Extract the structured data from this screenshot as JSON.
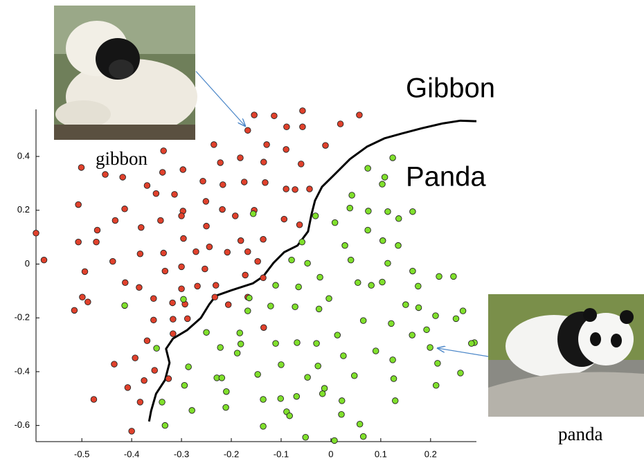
{
  "chart_data": {
    "type": "scatter",
    "xlim": [
      -0.592,
      0.292
    ],
    "ylim": [
      -0.66,
      0.575
    ],
    "xticks": [
      -0.5,
      -0.4,
      -0.3,
      -0.2,
      -0.1,
      0,
      0.1,
      0.2
    ],
    "yticks": [
      -0.6,
      -0.4,
      -0.2,
      0,
      0.2,
      0.4
    ],
    "annotations": [
      "Gibbon",
      "Panda",
      "gibbon",
      "panda"
    ],
    "series": [
      {
        "color": "#e0412c",
        "x": [
          -0.592,
          -0.057,
          0.057,
          -0.154,
          -0.114,
          -0.167,
          -0.089,
          -0.057,
          0.019,
          -0.011,
          -0.235,
          -0.336,
          -0.338,
          -0.129,
          -0.09,
          -0.222,
          -0.182,
          -0.135,
          -0.06,
          -0.297,
          -0.257,
          -0.217,
          -0.174,
          -0.132,
          -0.09,
          -0.072,
          -0.043,
          -0.501,
          -0.453,
          -0.418,
          -0.369,
          -0.314,
          -0.251,
          -0.218,
          -0.507,
          -0.414,
          -0.351,
          -0.297,
          -0.154,
          -0.433,
          -0.381,
          -0.342,
          -0.3,
          -0.192,
          -0.094,
          -0.063,
          -0.469,
          -0.25,
          -0.181,
          -0.136,
          -0.507,
          -0.471,
          -0.296,
          -0.271,
          -0.244,
          -0.208,
          -0.167,
          -0.576,
          -0.438,
          -0.383,
          -0.336,
          -0.3,
          -0.253,
          -0.147,
          -0.494,
          -0.333,
          -0.413,
          -0.385,
          -0.3,
          -0.268,
          -0.231,
          -0.172,
          -0.136,
          -0.499,
          -0.488,
          -0.515,
          -0.356,
          -0.318,
          -0.293,
          -0.233,
          -0.167,
          -0.206,
          -0.317,
          -0.288,
          -0.356,
          -0.135,
          -0.317,
          -0.369,
          -0.393,
          -0.435,
          -0.354,
          -0.326,
          -0.375,
          -0.408,
          -0.476,
          -0.383,
          -0.4
        ],
        "values": [
          0.115,
          0.57,
          0.554,
          0.554,
          0.551,
          0.497,
          0.51,
          0.51,
          0.521,
          0.441,
          0.444,
          0.421,
          0.341,
          0.444,
          0.426,
          0.377,
          0.395,
          0.379,
          0.372,
          0.351,
          0.308,
          0.295,
          0.305,
          0.303,
          0.279,
          0.277,
          0.279,
          0.359,
          0.333,
          0.323,
          0.292,
          0.259,
          0.233,
          0.203,
          0.221,
          0.205,
          0.262,
          0.197,
          0.2,
          0.162,
          0.136,
          0.162,
          0.179,
          0.179,
          0.167,
          0.146,
          0.126,
          0.141,
          0.087,
          0.092,
          0.082,
          0.082,
          0.095,
          0.046,
          0.064,
          0.044,
          0.046,
          0.015,
          0.01,
          0.038,
          0.041,
          -0.01,
          -0.018,
          0.01,
          -0.028,
          -0.026,
          -0.069,
          -0.087,
          -0.092,
          -0.082,
          -0.079,
          -0.041,
          -0.051,
          -0.123,
          -0.141,
          -0.172,
          -0.128,
          -0.144,
          -0.149,
          -0.123,
          -0.123,
          -0.151,
          -0.205,
          -0.203,
          -0.208,
          -0.236,
          -0.259,
          -0.285,
          -0.349,
          -0.372,
          -0.395,
          -0.426,
          -0.433,
          -0.459,
          -0.503,
          -0.513,
          -0.621
        ]
      },
      {
        "color": "#80e02c",
        "x": [
          0.124,
          0.074,
          0.108,
          0.103,
          0.042,
          0.038,
          0.075,
          0.114,
          0.136,
          0.164,
          -0.031,
          0.008,
          -0.156,
          0.074,
          0.104,
          -0.058,
          0.028,
          0.135,
          -0.079,
          -0.047,
          0.04,
          0.114,
          0.164,
          0.217,
          0.246,
          0.054,
          0.081,
          0.103,
          0.175,
          -0.111,
          -0.065,
          -0.164,
          -0.022,
          -0.121,
          -0.072,
          -0.004,
          0.176,
          0.15,
          0.21,
          0.265,
          0.251,
          -0.414,
          -0.296,
          -0.167,
          -0.024,
          0.121,
          0.065,
          -0.25,
          -0.183,
          0.013,
          0.192,
          -0.35,
          -0.222,
          -0.181,
          -0.111,
          -0.068,
          -0.029,
          0.09,
          0.163,
          0.288,
          0.282,
          0.199,
          -0.188,
          -0.1,
          -0.026,
          0.025,
          0.124,
          0.214,
          -0.286,
          -0.229,
          -0.219,
          -0.147,
          -0.294,
          -0.047,
          0.047,
          0.126,
          0.26,
          -0.21,
          -0.136,
          -0.101,
          -0.069,
          -0.013,
          -0.017,
          0.022,
          0.211,
          0.129,
          -0.339,
          -0.279,
          -0.211,
          -0.089,
          -0.083,
          0.021,
          -0.333,
          -0.136,
          0.058,
          -0.051,
          0.007,
          0.065
        ],
        "values": [
          0.395,
          0.356,
          0.323,
          0.297,
          0.256,
          0.208,
          0.197,
          0.195,
          0.169,
          0.195,
          0.179,
          0.154,
          0.187,
          0.126,
          0.087,
          0.082,
          0.069,
          0.069,
          0.015,
          0.003,
          0.015,
          0.003,
          -0.026,
          -0.046,
          -0.046,
          -0.069,
          -0.079,
          -0.067,
          -0.082,
          -0.079,
          -0.085,
          -0.126,
          -0.049,
          -0.156,
          -0.159,
          -0.128,
          -0.162,
          -0.151,
          -0.192,
          -0.174,
          -0.203,
          -0.154,
          -0.131,
          -0.174,
          -0.167,
          -0.221,
          -0.21,
          -0.254,
          -0.256,
          -0.264,
          -0.244,
          -0.313,
          -0.31,
          -0.297,
          -0.295,
          -0.292,
          -0.295,
          -0.323,
          -0.264,
          -0.292,
          -0.295,
          -0.31,
          -0.331,
          -0.374,
          -0.379,
          -0.341,
          -0.356,
          -0.369,
          -0.382,
          -0.423,
          -0.423,
          -0.41,
          -0.451,
          -0.421,
          -0.415,
          -0.426,
          -0.405,
          -0.474,
          -0.503,
          -0.5,
          -0.492,
          -0.462,
          -0.482,
          -0.508,
          -0.451,
          -0.508,
          -0.513,
          -0.544,
          -0.533,
          -0.549,
          -0.564,
          -0.559,
          -0.6,
          -0.603,
          -0.595,
          -0.644,
          -0.656,
          -0.641
        ]
      }
    ],
    "boundary": {
      "color": "#000000",
      "x": [
        -0.365,
        -0.361,
        -0.351,
        -0.333,
        -0.324,
        -0.331,
        -0.317,
        -0.289,
        -0.261,
        -0.244,
        -0.231,
        -0.199,
        -0.157,
        -0.136,
        -0.115,
        -0.094,
        -0.067,
        -0.046,
        -0.039,
        -0.032,
        -0.018,
        0.01,
        0.038,
        0.072,
        0.107,
        0.142,
        0.183,
        0.225,
        0.26,
        0.292
      ],
      "y": [
        -0.585,
        -0.546,
        -0.482,
        -0.431,
        -0.367,
        -0.315,
        -0.277,
        -0.246,
        -0.2,
        -0.149,
        -0.118,
        -0.097,
        -0.072,
        -0.046,
        0.005,
        0.044,
        0.069,
        0.121,
        0.185,
        0.236,
        0.287,
        0.338,
        0.39,
        0.436,
        0.467,
        0.485,
        0.505,
        0.523,
        0.533,
        0.531
      ]
    }
  }
}
